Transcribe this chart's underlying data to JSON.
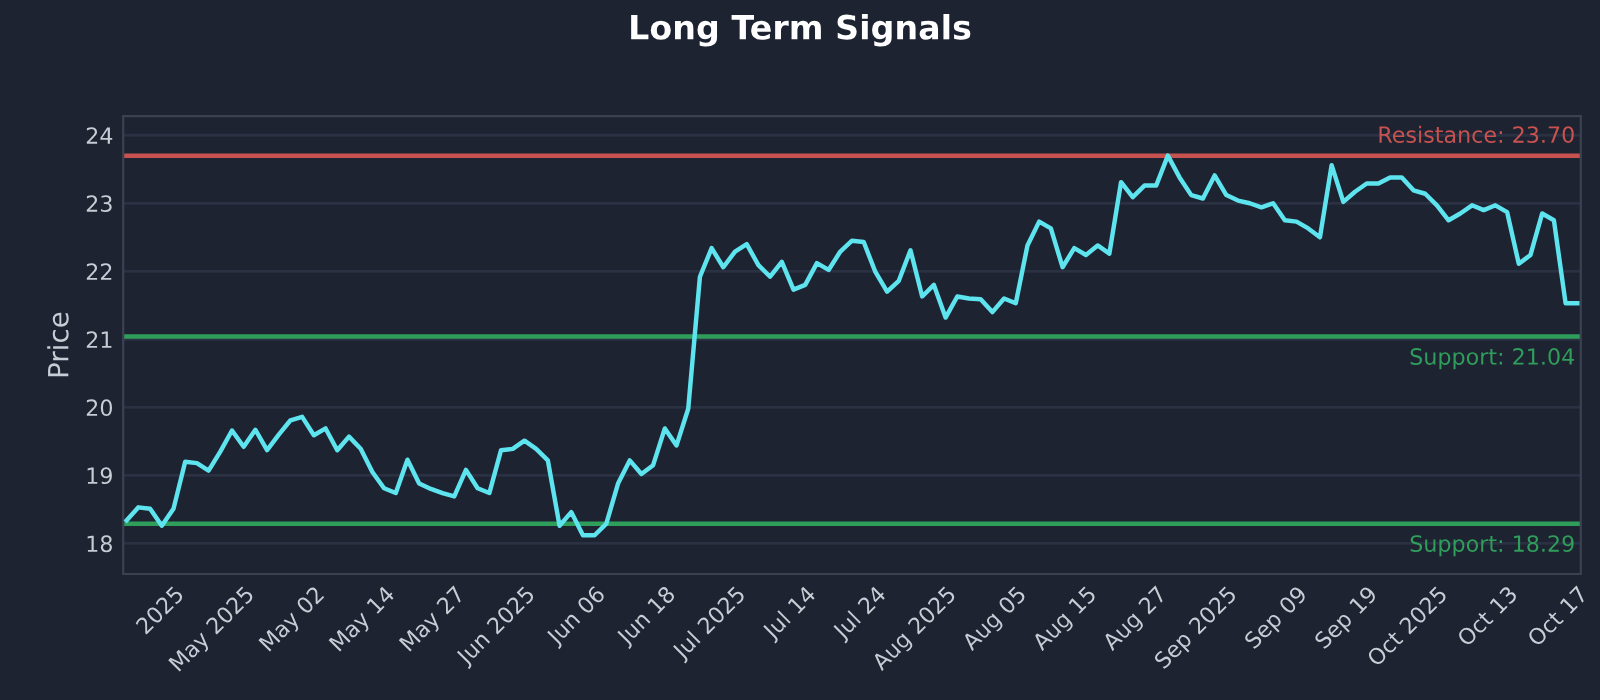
{
  "chart_data": {
    "type": "line",
    "title": "Long Term Signals",
    "ylabel": "Price",
    "categories": [
      null,
      null,
      null,
      null,
      "2025",
      null,
      null,
      null,
      null,
      null,
      "May 2025",
      null,
      null,
      null,
      null,
      null,
      "May 02",
      null,
      null,
      null,
      null,
      null,
      "May 14",
      null,
      null,
      null,
      null,
      null,
      "May 27",
      null,
      null,
      null,
      null,
      null,
      "Jun 2025",
      null,
      null,
      null,
      null,
      null,
      "Jun 06",
      null,
      null,
      null,
      null,
      null,
      "Jun 18",
      null,
      null,
      null,
      null,
      null,
      "Jul 2025",
      null,
      null,
      null,
      null,
      null,
      "Jul 14",
      null,
      null,
      null,
      null,
      null,
      "Jul 24",
      null,
      null,
      null,
      null,
      null,
      "Aug 2025",
      null,
      null,
      null,
      null,
      null,
      "Aug 05",
      null,
      null,
      null,
      null,
      null,
      "Aug 15",
      null,
      null,
      null,
      null,
      null,
      "Aug 27",
      null,
      null,
      null,
      null,
      null,
      "Sep 2025",
      null,
      null,
      null,
      null,
      null,
      "Sep 09",
      null,
      null,
      null,
      null,
      null,
      "Sep 19",
      null,
      null,
      null,
      null,
      null,
      "Oct 2025",
      null,
      null,
      null,
      null,
      null,
      "Oct 13",
      null,
      null,
      null,
      null,
      null,
      "Oct 17"
    ],
    "series": [
      {
        "color": "#5de4ee",
        "values": [
          18.34,
          18.53,
          18.51,
          18.26,
          18.51,
          19.2,
          19.18,
          19.07,
          19.35,
          19.66,
          19.42,
          19.67,
          19.37,
          19.6,
          19.81,
          19.86,
          19.59,
          19.69,
          19.37,
          19.57,
          19.39,
          19.05,
          18.81,
          18.74,
          19.23,
          18.88,
          18.8,
          18.74,
          18.69,
          19.08,
          18.81,
          18.74,
          19.37,
          19.39,
          19.51,
          19.39,
          19.22,
          18.26,
          18.46,
          18.12,
          18.12,
          18.29,
          18.88,
          19.22,
          19.02,
          19.15,
          19.69,
          19.44,
          19.98,
          21.92,
          22.34,
          22.06,
          22.29,
          22.4,
          22.09,
          21.92,
          22.14,
          21.73,
          21.8,
          22.12,
          22.02,
          22.29,
          22.45,
          22.43,
          21.99,
          21.7,
          21.86,
          22.31,
          21.63,
          21.8,
          21.32,
          21.63,
          21.6,
          21.59,
          21.4,
          21.6,
          21.53,
          22.38,
          22.73,
          22.63,
          22.06,
          22.34,
          22.24,
          22.38,
          22.26,
          23.31,
          23.09,
          23.26,
          23.26,
          23.7,
          23.38,
          23.12,
          23.07,
          23.41,
          23.12,
          23.04,
          23.0,
          22.94,
          23.0,
          22.75,
          22.73,
          22.63,
          22.5,
          23.56,
          23.02,
          23.17,
          23.29,
          23.29,
          23.38,
          23.38,
          23.19,
          23.14,
          22.97,
          22.75,
          22.85,
          22.97,
          22.9,
          22.97,
          22.87,
          22.11,
          22.24,
          22.85,
          22.75,
          21.53,
          21.53
        ]
      }
    ],
    "ylim": [
      17.55,
      24.28
    ],
    "yticks": [
      18,
      19,
      20,
      21,
      22,
      23,
      24
    ],
    "grid": "y",
    "legend": false,
    "marker": "none",
    "line_style": "solid",
    "ref_lines": [
      {
        "axis": "y",
        "value": 23.7,
        "label": "Resistance: 23.70",
        "color": "#c8524f"
      },
      {
        "axis": "y",
        "value": 21.04,
        "label": "Support: 21.04",
        "color": "#2f9e5a"
      },
      {
        "axis": "y",
        "value": 18.29,
        "label": "Support: 18.29",
        "color": "#2f9e5a"
      }
    ]
  }
}
